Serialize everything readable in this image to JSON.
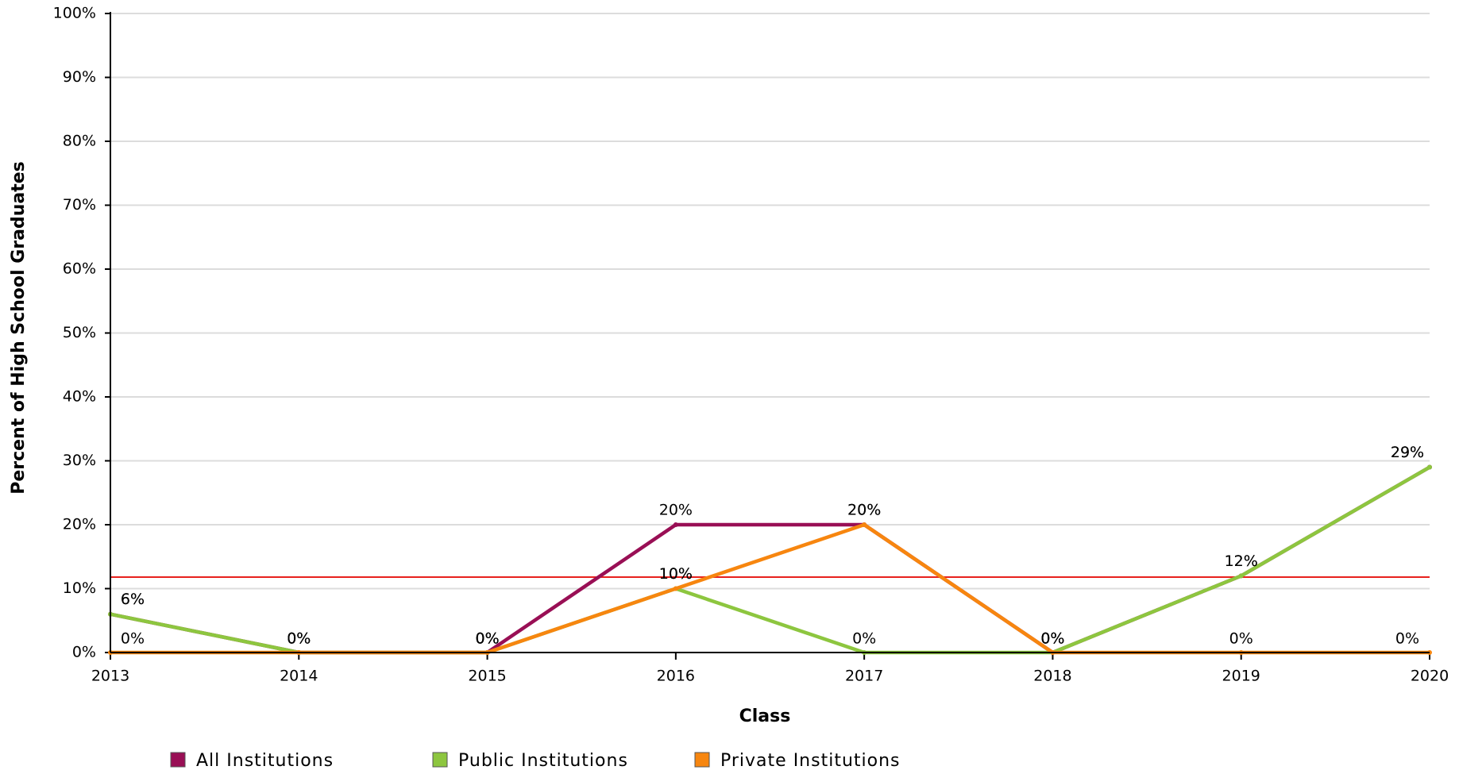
{
  "chart_data": {
    "type": "line",
    "x_label": "Class",
    "y_label": "Percent of High School Graduates",
    "categories": [
      "2013",
      "2014",
      "2015",
      "2016",
      "2017",
      "2018",
      "2019",
      "2020"
    ],
    "series": [
      {
        "name": "All Institutions",
        "color": "#990f55",
        "values": [
          6,
          0,
          0,
          20,
          20,
          0,
          12,
          29
        ],
        "value_labels": [
          "6%",
          "0%",
          "0%",
          "20%",
          "20%",
          "0%",
          "12%",
          "29%"
        ]
      },
      {
        "name": "Public Institutions",
        "color": "#8dc63f",
        "values": [
          6,
          0,
          0,
          10,
          0,
          0,
          12,
          29
        ],
        "value_labels": [
          "6%",
          "0%",
          "0%",
          "10%",
          "0%",
          "0%",
          "12%",
          "29%"
        ]
      },
      {
        "name": "Private Institutions",
        "color": "#f7860f",
        "values": [
          0,
          0,
          0,
          10,
          20,
          0,
          0,
          0
        ],
        "value_labels": [
          "0%",
          "0%",
          "0%",
          "10%",
          "20%",
          "0%",
          "0%",
          "0%"
        ]
      }
    ],
    "reference_line": {
      "value": 11.8,
      "color": "#e8211d"
    },
    "ylim": [
      0,
      100
    ],
    "yticks": [
      {
        "value": 0,
        "label": "0%"
      },
      {
        "value": 10,
        "label": "10%"
      },
      {
        "value": 20,
        "label": "20%"
      },
      {
        "value": 30,
        "label": "30%"
      },
      {
        "value": 40,
        "label": "40%"
      },
      {
        "value": 50,
        "label": "50%"
      },
      {
        "value": 60,
        "label": "60%"
      },
      {
        "value": 70,
        "label": "70%"
      },
      {
        "value": 80,
        "label": "80%"
      },
      {
        "value": 90,
        "label": "90%"
      },
      {
        "value": 100,
        "label": "100%"
      }
    ],
    "grid": true
  }
}
